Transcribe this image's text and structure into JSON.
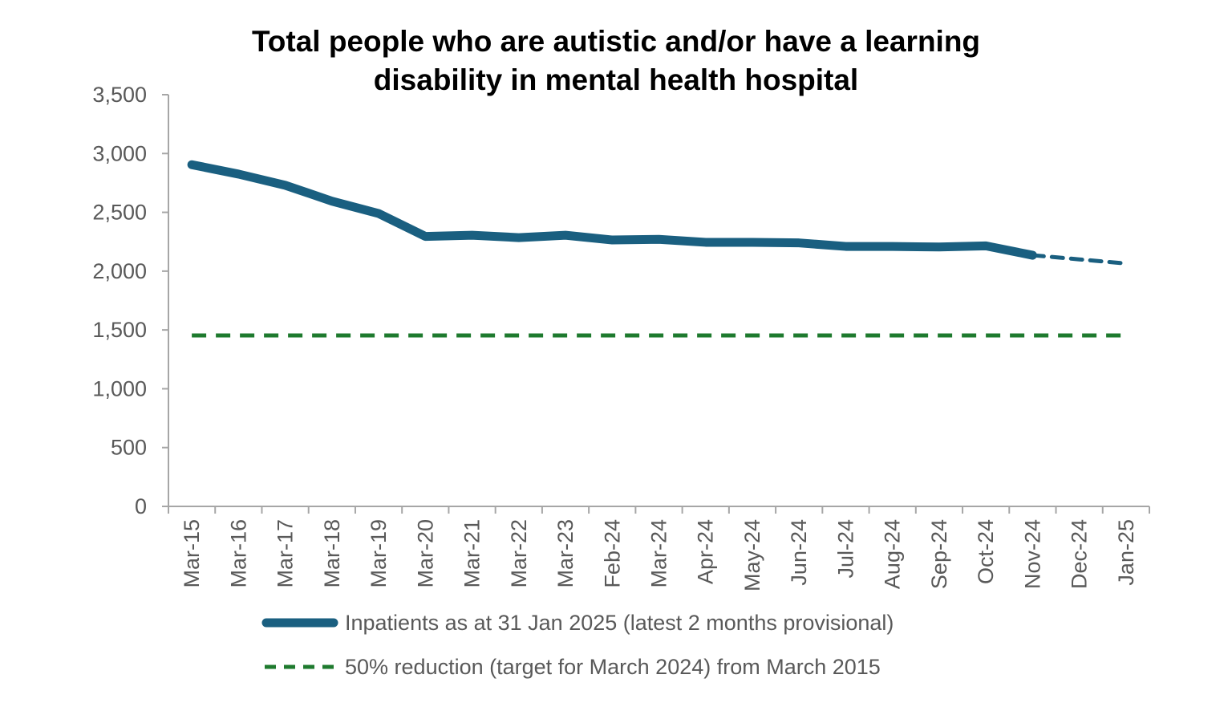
{
  "chart_data": {
    "type": "line",
    "title": [
      "Total people who are autistic and/or have a learning",
      "disability in mental health hospital"
    ],
    "xlabel": "",
    "ylabel": "",
    "ylim": [
      0,
      3500
    ],
    "yticks": [
      "0",
      "500",
      "1,000",
      "1,500",
      "2,000",
      "2,500",
      "3,000",
      "3,500"
    ],
    "ytick_values": [
      0,
      500,
      1000,
      1500,
      2000,
      2500,
      3000,
      3500
    ],
    "categories": [
      "Mar-15",
      "Mar-16",
      "Mar-17",
      "Mar-18",
      "Mar-19",
      "Mar-20",
      "Mar-21",
      "Mar-22",
      "Mar-23",
      "Feb-24",
      "Mar-24",
      "Apr-24",
      "May-24",
      "Jun-24",
      "Jul-24",
      "Aug-24",
      "Sep-24",
      "Oct-24",
      "Nov-24",
      "Dec-24",
      "Jan-25"
    ],
    "grid": false,
    "legend_position": "bottom",
    "series": [
      {
        "name": "Inpatients as at 31 Jan 2025 (latest 2 months provisional)",
        "color": "#1a5f80",
        "values": [
          2905,
          2825,
          2730,
          2595,
          2490,
          2295,
          2305,
          2285,
          2305,
          2265,
          2270,
          2245,
          2245,
          2240,
          2210,
          2210,
          2205,
          2215,
          2135,
          2100,
          2065
        ],
        "provisional": [
          false,
          false,
          false,
          false,
          false,
          false,
          false,
          false,
          false,
          false,
          false,
          false,
          false,
          false,
          false,
          false,
          false,
          false,
          false,
          true,
          true
        ]
      },
      {
        "name": "50% reduction (target for March 2024) from March 2015",
        "color": "#1e7a2e",
        "style": "dashed",
        "values": [
          1453,
          1453,
          1453,
          1453,
          1453,
          1453,
          1453,
          1453,
          1453,
          1453,
          1453,
          1453,
          1453,
          1453,
          1453,
          1453,
          1453,
          1453,
          1453,
          1453,
          1453
        ]
      }
    ]
  }
}
